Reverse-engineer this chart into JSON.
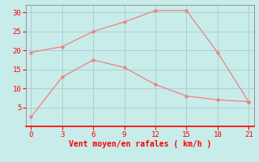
{
  "line1_x": [
    0,
    3,
    6,
    9,
    12,
    15,
    18,
    21
  ],
  "line1_y": [
    19.5,
    21.0,
    25.0,
    27.5,
    30.5,
    30.5,
    19.5,
    6.5
  ],
  "line2_x": [
    0,
    3,
    6,
    9,
    12,
    15,
    18,
    21
  ],
  "line2_y": [
    2.5,
    13.0,
    17.5,
    15.5,
    11.0,
    8.0,
    7.0,
    6.5
  ],
  "line_color": "#f08080",
  "marker_color": "#f08080",
  "bg_color": "#c8ecea",
  "grid_color": "#aacccc",
  "xlabel": "Vent moyen/en rafales ( km/h )",
  "xlim": [
    -0.5,
    21.5
  ],
  "ylim": [
    0,
    32
  ],
  "xticks": [
    0,
    3,
    6,
    9,
    12,
    15,
    18,
    21
  ],
  "yticks": [
    5,
    10,
    15,
    20,
    25,
    30
  ],
  "xlabel_color": "#ff0000",
  "tick_color": "#ff0000",
  "bottom_spine_color": "#ff0000",
  "left_spine_color": "#888888",
  "right_spine_color": "#888888",
  "top_spine_color": "#888888"
}
